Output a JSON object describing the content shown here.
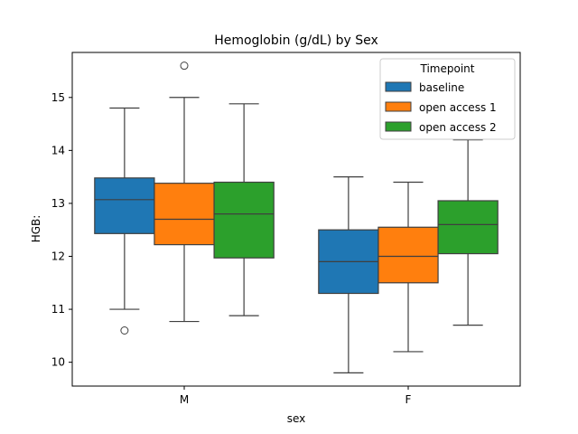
{
  "chart_data": {
    "type": "box",
    "title": "Hemoglobin (g/dL) by Sex",
    "xlabel": "sex",
    "ylabel": "HGB:",
    "categories": [
      "M",
      "F"
    ],
    "ylim": [
      9.55,
      15.85
    ],
    "yticks": [
      10,
      11,
      12,
      13,
      14,
      15
    ],
    "grid": false,
    "legend": {
      "title": "Timepoint",
      "placement": "top-right"
    },
    "series": [
      {
        "name": "baseline",
        "color": "#1f77b4",
        "boxes": [
          {
            "whisker_low": 11.0,
            "q1": 12.43,
            "median": 13.07,
            "q3": 13.48,
            "whisker_high": 14.8,
            "outliers": [
              10.6
            ]
          },
          {
            "whisker_low": 9.8,
            "q1": 11.3,
            "median": 11.9,
            "q3": 12.5,
            "whisker_high": 13.5,
            "outliers": []
          }
        ]
      },
      {
        "name": "open access 1",
        "color": "#ff7f0e",
        "boxes": [
          {
            "whisker_low": 10.77,
            "q1": 12.22,
            "median": 12.7,
            "q3": 13.38,
            "whisker_high": 15.0,
            "outliers": [
              15.6
            ]
          },
          {
            "whisker_low": 10.2,
            "q1": 11.5,
            "median": 12.0,
            "q3": 12.55,
            "whisker_high": 13.4,
            "outliers": []
          }
        ]
      },
      {
        "name": "open access 2",
        "color": "#2ca02c",
        "boxes": [
          {
            "whisker_low": 10.88,
            "q1": 11.97,
            "median": 12.8,
            "q3": 13.4,
            "whisker_high": 14.88,
            "outliers": []
          },
          {
            "whisker_low": 10.7,
            "q1": 12.05,
            "median": 12.6,
            "q3": 13.05,
            "whisker_high": 14.2,
            "outliers": []
          }
        ]
      }
    ]
  }
}
